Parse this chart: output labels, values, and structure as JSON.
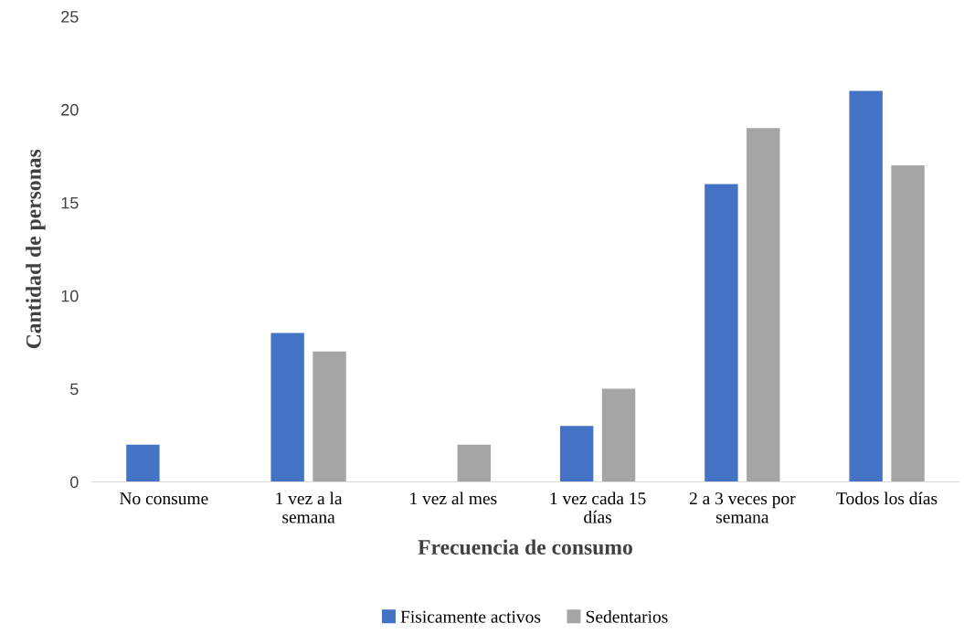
{
  "chart_data": {
    "type": "bar",
    "xlabel": "Frecuencia de consumo",
    "ylabel": "Cantidad de personas",
    "categories": [
      "No consume",
      "1 vez a la\nsemana",
      "1 vez al mes",
      "1 vez cada 15\ndías",
      "2 a 3 veces por\nsemana",
      "Todos los días"
    ],
    "series": [
      {
        "name": "Fisicamente activos",
        "color": "#4472c4",
        "values": [
          2,
          8,
          0,
          3,
          16,
          21
        ]
      },
      {
        "name": "Sedentarios",
        "color": "#a5a5a5",
        "values": [
          0,
          7,
          2,
          5,
          19,
          17
        ]
      }
    ],
    "ylim": [
      0,
      25
    ],
    "yticks": [
      0,
      5,
      10,
      15,
      20,
      25
    ],
    "grid": false,
    "legend": "bottom"
  }
}
